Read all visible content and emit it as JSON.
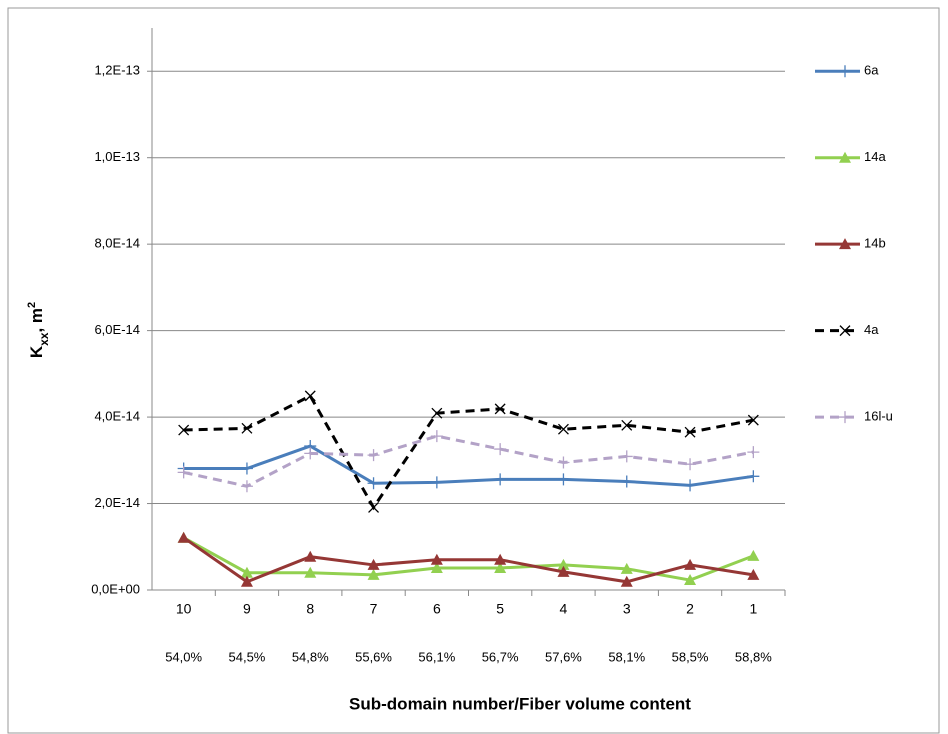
{
  "chart_data": {
    "type": "line",
    "y_label": [
      "K",
      "xx",
      ", m",
      "2"
    ],
    "x_label": "Sub-domain number/Fiber volume content",
    "categories": [
      "10",
      "9",
      "8",
      "7",
      "6",
      "5",
      "4",
      "3",
      "2",
      "1"
    ],
    "fiber_content": [
      "54,0%",
      "54,5%",
      "54,8%",
      "55,6%",
      "56,1%",
      "56,7%",
      "57,6%",
      "58,1%",
      "58,5%",
      "58,8%"
    ],
    "ylim": [
      0,
      1.3e-13
    ],
    "yticks": [
      {
        "value": 0,
        "label": "0,0E+00"
      },
      {
        "value": 2e-14,
        "label": "2,0E-14"
      },
      {
        "value": 4e-14,
        "label": "4,0E-14"
      },
      {
        "value": 6e-14,
        "label": "6,0E-14"
      },
      {
        "value": 8e-14,
        "label": "8,0E-14"
      },
      {
        "value": 1e-13,
        "label": "1,0E-13"
      },
      {
        "value": 1.2e-13,
        "label": "1,2E-13"
      }
    ],
    "grid": true,
    "legend": "right",
    "series": [
      {
        "name": "6a",
        "color": "#4a7ebb",
        "marker": "plus",
        "dash": false,
        "values": [
          2.81e-14,
          2.81e-14,
          3.33e-14,
          2.47e-14,
          2.49e-14,
          2.56e-14,
          2.56e-14,
          2.51e-14,
          2.42e-14,
          2.63e-14
        ]
      },
      {
        "name": "14a",
        "color": "#92d050",
        "marker": "triangle",
        "dash": false,
        "values": [
          1.21e-14,
          4e-15,
          4e-15,
          3.5e-15,
          5.1e-15,
          5.1e-15,
          5.8e-15,
          4.9e-15,
          2.3e-15,
          7.9e-15
        ]
      },
      {
        "name": "14b",
        "color": "#953735",
        "marker": "triangle",
        "dash": false,
        "values": [
          1.21e-14,
          1.9e-15,
          7.7e-15,
          5.8e-15,
          7e-15,
          7e-15,
          4.2e-15,
          1.9e-15,
          5.8e-15,
          3.5e-15
        ]
      },
      {
        "name": "4a",
        "color": "#000000",
        "marker": "cross",
        "dash": true,
        "values": [
          3.7e-14,
          3.74e-14,
          4.49e-14,
          1.91e-14,
          4.09e-14,
          4.19e-14,
          3.72e-14,
          3.81e-14,
          3.65e-14,
          3.93e-14
        ]
      },
      {
        "name": "16l-u",
        "color": "#b3a2c7",
        "marker": "plus",
        "dash": true,
        "values": [
          2.72e-14,
          2.4e-14,
          3.16e-14,
          3.12e-14,
          3.56e-14,
          3.26e-14,
          2.95e-14,
          3.09e-14,
          2.91e-14,
          3.19e-14
        ]
      }
    ]
  }
}
